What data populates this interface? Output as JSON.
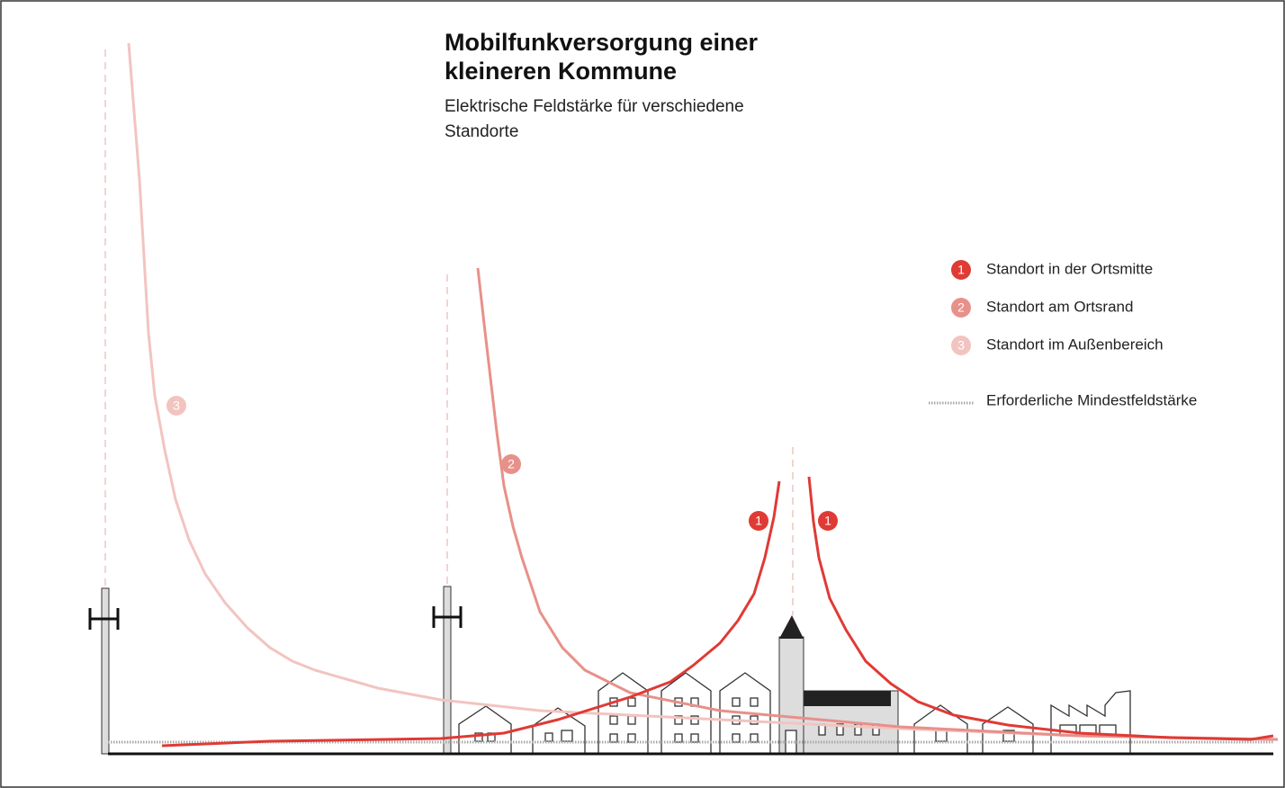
{
  "header": {
    "title_lines": [
      "Mobilfunkversorgung einer",
      "kleineren Kommune"
    ],
    "subtitle_lines": [
      "Elektrische Feldstärke für verschiedene",
      "Standorte"
    ]
  },
  "legend": [
    {
      "marker": "1",
      "label": "Standort in der Ortsmitte",
      "color": "#e03a35"
    },
    {
      "marker": "2",
      "label": "Standort am Ortsrand",
      "color": "#e8908a"
    },
    {
      "marker": "3",
      "label": "Standort im Außenbereich",
      "color": "#f2c4c0"
    },
    {
      "label": "Erforderliche Mindestfeldstärke"
    }
  ],
  "curve_labels": [
    {
      "text": "3",
      "color": "#f2c4c0"
    },
    {
      "text": "2",
      "color": "#e8908a"
    },
    {
      "text": "1",
      "color": "#e03a35"
    },
    {
      "text": "1",
      "color": "#e03a35"
    }
  ]
}
